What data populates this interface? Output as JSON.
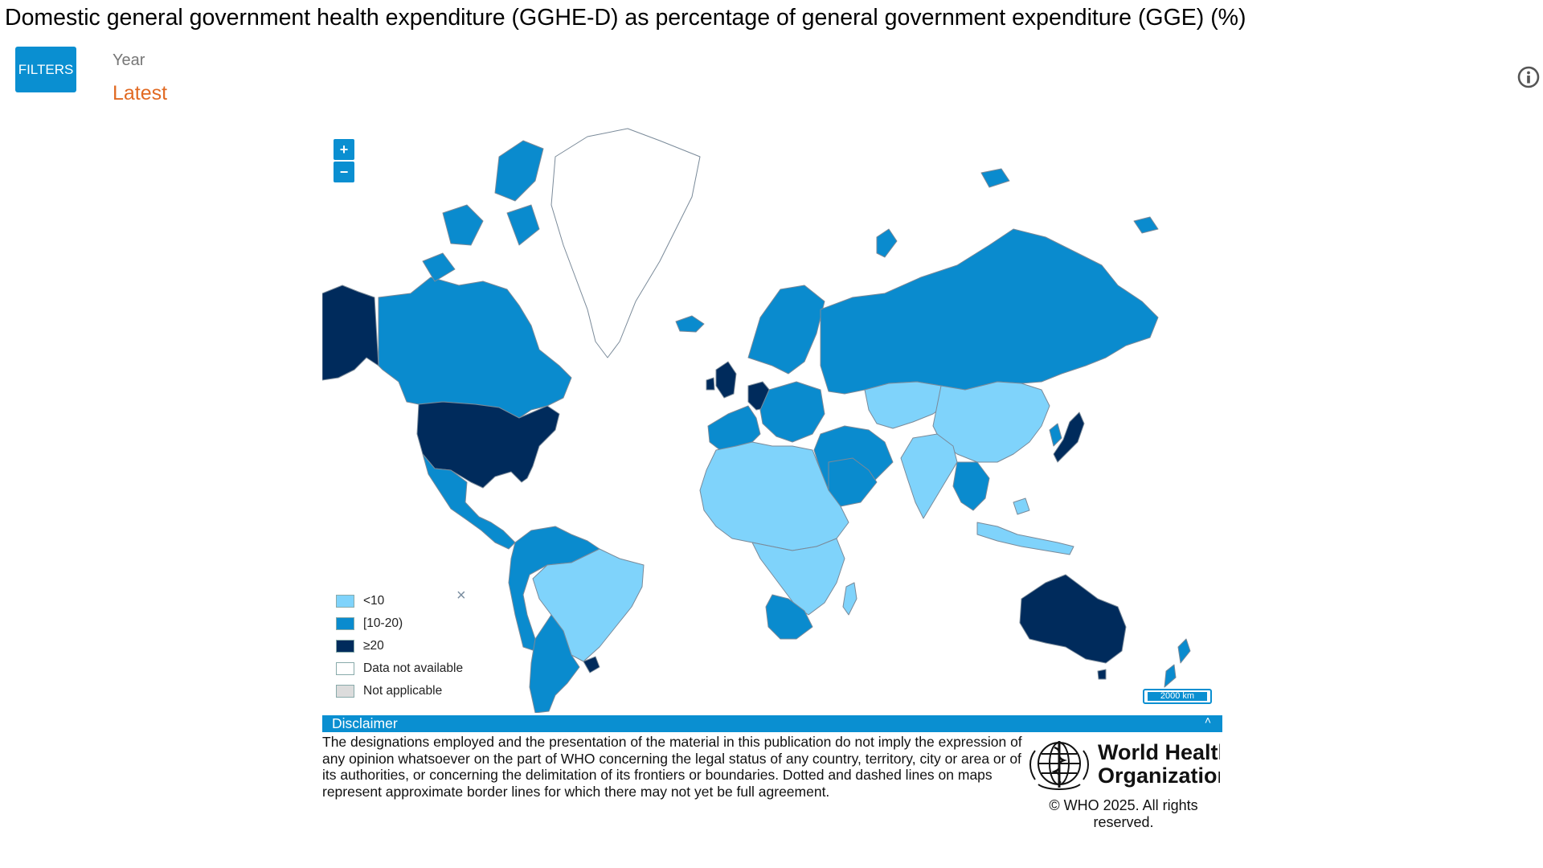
{
  "header": {
    "title": "Domestic general government health expenditure (GGHE-D) as percentage of general government expenditure (GGE) (%)"
  },
  "filters": {
    "button_label": "FILTERS",
    "year_label": "Year",
    "year_value": "Latest"
  },
  "map": {
    "zoom_in_label": "+",
    "zoom_out_label": "−",
    "scale_label": "2000 km",
    "legend": {
      "close_label": "×",
      "items": [
        {
          "label": "<10",
          "color": "#7fd3fb"
        },
        {
          "label": "[10-20)",
          "color": "#0a8bce"
        },
        {
          "label": "≥20",
          "color": "#002b5c"
        },
        {
          "label": "Data not available",
          "color": "#ffffff"
        },
        {
          "label": "Not applicable",
          "color": "#dcdcdc"
        }
      ]
    },
    "regions": [
      {
        "name": "Alaska (USA)",
        "class": "≥20"
      },
      {
        "name": "Canada",
        "class": "[10-20)"
      },
      {
        "name": "United States of America",
        "class": "≥20"
      },
      {
        "name": "Greenland",
        "class": "Data not available"
      },
      {
        "name": "Mexico",
        "class": "[10-20)"
      },
      {
        "name": "Brazil",
        "class": "<10"
      },
      {
        "name": "Argentina",
        "class": "[10-20)"
      },
      {
        "name": "Uruguay",
        "class": "≥20"
      },
      {
        "name": "United Kingdom",
        "class": "≥20"
      },
      {
        "name": "Germany",
        "class": "≥20"
      },
      {
        "name": "Russian Federation",
        "class": "[10-20)"
      },
      {
        "name": "China",
        "class": "<10"
      },
      {
        "name": "India",
        "class": "<10"
      },
      {
        "name": "Japan",
        "class": "≥20"
      },
      {
        "name": "Australia",
        "class": "≥20"
      },
      {
        "name": "South Africa",
        "class": "[10-20)"
      },
      {
        "name": "Saudi Arabia",
        "class": "[10-20)"
      },
      {
        "name": "Iceland",
        "class": "[10-20)"
      },
      {
        "name": "New Zealand",
        "class": "[10-20)"
      }
    ]
  },
  "disclaimer": {
    "title": "Disclaimer",
    "collapse_label": "˄",
    "text": "The designations employed and the presentation of the material in this publication do not imply the expression of any opinion whatsoever on the part of WHO concerning the legal status of any country, territory, city or area or of its authorities, or concerning the delimitation of its frontiers or boundaries. Dotted and dashed lines on maps represent approximate border lines for which there may not yet be full agreement."
  },
  "footer": {
    "logo_text_line1": "World Health",
    "logo_text_line2": "Organization",
    "copyright": "© WHO 2025. All rights reserved."
  }
}
